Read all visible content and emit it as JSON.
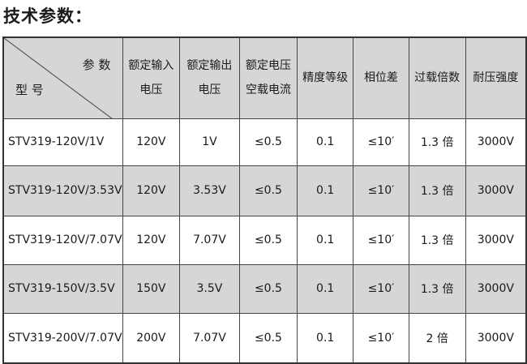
{
  "title": "技术参数：",
  "table": {
    "corner": {
      "top": "参 数",
      "bottom": "型 号"
    },
    "headers": [
      [
        "额定输入",
        "电压"
      ],
      [
        "额定输出",
        "电压"
      ],
      [
        "额定电压",
        "空载电流"
      ],
      [
        "精度等级"
      ],
      [
        "相位差"
      ],
      [
        "过载倍数"
      ],
      [
        "耐压强度"
      ]
    ],
    "rows": [
      [
        "STV319-120V/1V",
        "120V",
        "1V",
        "≤0.5",
        "0.1",
        "≤10′",
        "1.3 倍",
        "3000V"
      ],
      [
        "STV319-120V/3.53V",
        "120V",
        "3.53V",
        "≤0.5",
        "0.1",
        "≤10′",
        "1.3 倍",
        "3000V"
      ],
      [
        "STV319-120V/7.07V",
        "120V",
        "7.07V",
        "≤0.5",
        "0.1",
        "≤10′",
        "1.3 倍",
        "3000V"
      ],
      [
        "STV319-150V/3.5V",
        "150V",
        "3.5V",
        "≤0.5",
        "0.1",
        "≤10′",
        "1.3 倍",
        "3000V"
      ],
      [
        "STV319-200V/7.07V",
        "200V",
        "7.07V",
        "≤0.5",
        "0.1",
        "≤10′",
        "2 倍",
        "3000V"
      ]
    ]
  }
}
